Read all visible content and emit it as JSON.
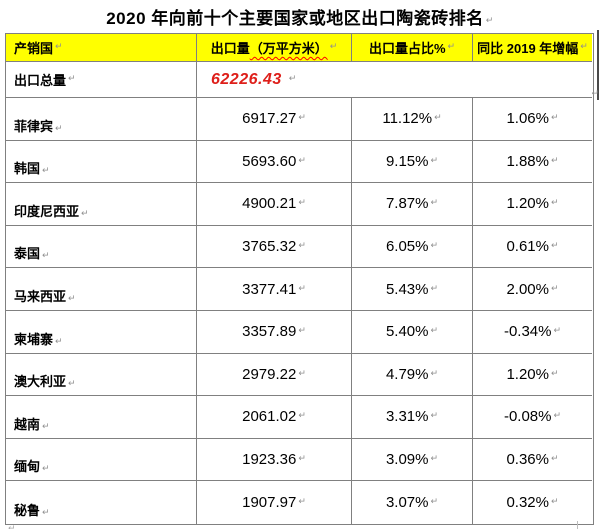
{
  "marks": {
    "pilcrow": "↵"
  },
  "colors": {
    "header_bg": "#ffff00",
    "border": "#808080",
    "total_value_red": "#de1f1a",
    "spellcheck_underline": "#ff0000",
    "pilcrow_gray": "#8f8f8f"
  },
  "title": "2020 年向前十个主要国家或地区出口陶瓷砖排名",
  "table": {
    "headers": {
      "col1": "产销国",
      "col2_main": "出口量",
      "col2_paren": "（万平方米）",
      "col3": "出口量占比%",
      "col4": "同比 2019 年增幅"
    },
    "total": {
      "label": "出口总量",
      "value": "62226.43"
    },
    "rows": [
      {
        "country": "菲律宾",
        "volume": "6917.27",
        "share": "11.12%",
        "yoy": "1.06%"
      },
      {
        "country": "韩国",
        "volume": "5693.60",
        "share": "9.15%",
        "yoy": "1.88%"
      },
      {
        "country": "印度尼西亚",
        "volume": "4900.21",
        "share": "7.87%",
        "yoy": "1.20%"
      },
      {
        "country": "泰国",
        "volume": "3765.32",
        "share": "6.05%",
        "yoy": "0.61%"
      },
      {
        "country": "马来西亚",
        "volume": "3377.41",
        "share": "5.43%",
        "yoy": "2.00%"
      },
      {
        "country": "柬埔寨",
        "volume": "3357.89",
        "share": "5.40%",
        "yoy": "-0.34%"
      },
      {
        "country": "澳大利亚",
        "volume": "2979.22",
        "share": "4.79%",
        "yoy": "1.20%"
      },
      {
        "country": "越南",
        "volume": "2061.02",
        "share": "3.31%",
        "yoy": "-0.08%"
      },
      {
        "country": "缅甸",
        "volume": "1923.36",
        "share": "3.09%",
        "yoy": "0.36%"
      },
      {
        "country": "秘鲁",
        "volume": "1907.97",
        "share": "3.07%",
        "yoy": "0.32%"
      }
    ]
  }
}
